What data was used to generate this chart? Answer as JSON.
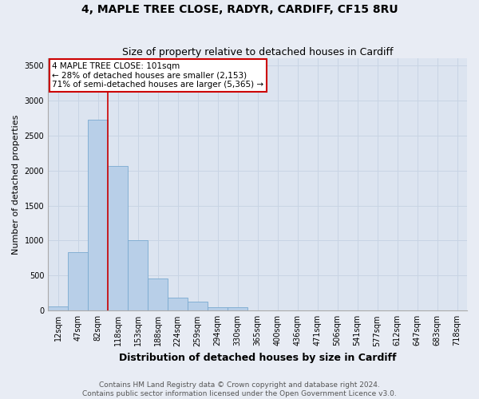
{
  "title": "4, MAPLE TREE CLOSE, RADYR, CARDIFF, CF15 8RU",
  "subtitle": "Size of property relative to detached houses in Cardiff",
  "xlabel": "Distribution of detached houses by size in Cardiff",
  "ylabel": "Number of detached properties",
  "categories": [
    "12sqm",
    "47sqm",
    "82sqm",
    "118sqm",
    "153sqm",
    "188sqm",
    "224sqm",
    "259sqm",
    "294sqm",
    "330sqm",
    "365sqm",
    "400sqm",
    "436sqm",
    "471sqm",
    "506sqm",
    "541sqm",
    "577sqm",
    "612sqm",
    "647sqm",
    "683sqm",
    "718sqm"
  ],
  "values": [
    60,
    840,
    2720,
    2060,
    1010,
    460,
    185,
    130,
    50,
    50,
    0,
    0,
    0,
    0,
    0,
    0,
    0,
    0,
    0,
    0,
    0
  ],
  "bar_color": "#b8cfe8",
  "bar_edge_color": "#7aaad0",
  "property_label": "4 MAPLE TREE CLOSE: 101sqm",
  "annotation_line1": "← 28% of detached houses are smaller (2,153)",
  "annotation_line2": "71% of semi-detached houses are larger (5,365) →",
  "annotation_box_color": "#ffffff",
  "annotation_box_edge_color": "#cc0000",
  "vline_color": "#cc0000",
  "vline_index": 2.5,
  "ylim": [
    0,
    3600
  ],
  "yticks": [
    0,
    500,
    1000,
    1500,
    2000,
    2500,
    3000,
    3500
  ],
  "grid_color": "#c8d4e4",
  "bg_color": "#e8ecf4",
  "plot_bg_color": "#dce4f0",
  "footer_line1": "Contains HM Land Registry data © Crown copyright and database right 2024.",
  "footer_line2": "Contains public sector information licensed under the Open Government Licence v3.0.",
  "title_fontsize": 10,
  "subtitle_fontsize": 9,
  "xlabel_fontsize": 9,
  "ylabel_fontsize": 8,
  "tick_fontsize": 7,
  "footer_fontsize": 6.5,
  "annotation_fontsize": 7.5
}
